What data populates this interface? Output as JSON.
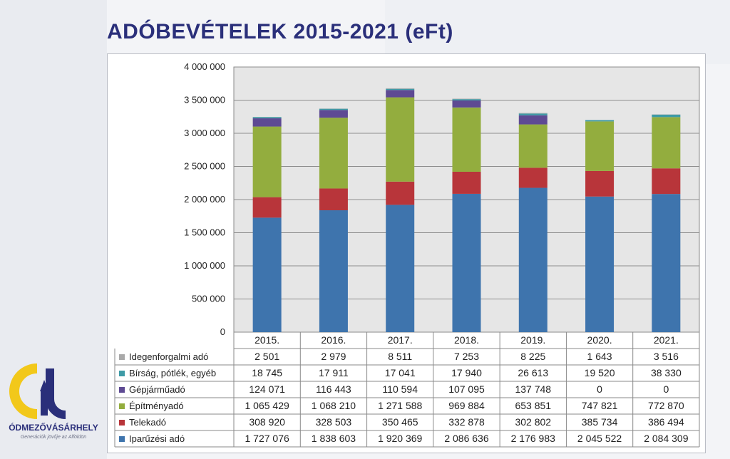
{
  "header": {
    "title": "ADÓBEVÉTELEK 2015-2021 (eFt)"
  },
  "logo": {
    "name": "ÓDMEZŐVÁSÁRHELY",
    "tagline": "Generációk jövője az Alföldön"
  },
  "colors": {
    "title": "#2a2f7a",
    "plot_bg": "#e6e6e6",
    "series": [
      "#a9a9a9",
      "#3e9ba6",
      "#5e4a93",
      "#93ad3e",
      "#b8353a",
      "#3e74ad"
    ]
  },
  "chart_data": {
    "type": "bar",
    "stacked": true,
    "title": "ADÓBEVÉTELEK 2015-2021 (eFt)",
    "categories": [
      "2015.",
      "2016.",
      "2017.",
      "2018.",
      "2019.",
      "2020.",
      "2021."
    ],
    "ylim": [
      0,
      4000000
    ],
    "yticks": [
      0,
      500000,
      1000000,
      1500000,
      2000000,
      2500000,
      3000000,
      3500000,
      4000000
    ],
    "ytick_labels": [
      "0",
      "500 000",
      "1 000 000",
      "1 500 000",
      "2 000 000",
      "2 500 000",
      "3 000 000",
      "3 500 000",
      "4 000 000"
    ],
    "grid": true,
    "legend": "data-table",
    "series": [
      {
        "name": "Idegenforgalmi adó",
        "color": "#a9a9a9",
        "values": [
          2501,
          2979,
          8511,
          7253,
          8225,
          1643,
          3516
        ],
        "labels": [
          "2 501",
          "2 979",
          "8 511",
          "7 253",
          "8 225",
          "1 643",
          "3 516"
        ]
      },
      {
        "name": "Bírság, pótlék, egyéb",
        "color": "#3e9ba6",
        "values": [
          18745,
          17911,
          17041,
          17940,
          26613,
          19520,
          38330
        ],
        "labels": [
          "18 745",
          "17 911",
          "17 041",
          "17 940",
          "26 613",
          "19 520",
          "38 330"
        ]
      },
      {
        "name": "Gépjárműadó",
        "color": "#5e4a93",
        "values": [
          124071,
          116443,
          110594,
          107095,
          137748,
          0,
          0
        ],
        "labels": [
          "124 071",
          "116 443",
          "110 594",
          "107 095",
          "137 748",
          "0",
          "0"
        ]
      },
      {
        "name": "Építményadó",
        "color": "#93ad3e",
        "values": [
          1065429,
          1068210,
          1271588,
          969884,
          653851,
          747821,
          772870
        ],
        "labels": [
          "1 065 429",
          "1 068 210",
          "1 271 588",
          "969 884",
          "653 851",
          "747 821",
          "772 870"
        ]
      },
      {
        "name": "Telekadó",
        "color": "#b8353a",
        "values": [
          308920,
          328503,
          350465,
          332878,
          302802,
          385734,
          386494
        ],
        "labels": [
          "308 920",
          "328 503",
          "350 465",
          "332 878",
          "302 802",
          "385 734",
          "386 494"
        ]
      },
      {
        "name": "Iparűzési adó",
        "color": "#3e74ad",
        "values": [
          1727076,
          1838603,
          1920369,
          2086636,
          2176983,
          2045522,
          2084309
        ],
        "labels": [
          "1 727 076",
          "1 838 603",
          "1 920 369",
          "2 086 636",
          "2 176 983",
          "2 045 522",
          "2 084 309"
        ]
      }
    ]
  }
}
